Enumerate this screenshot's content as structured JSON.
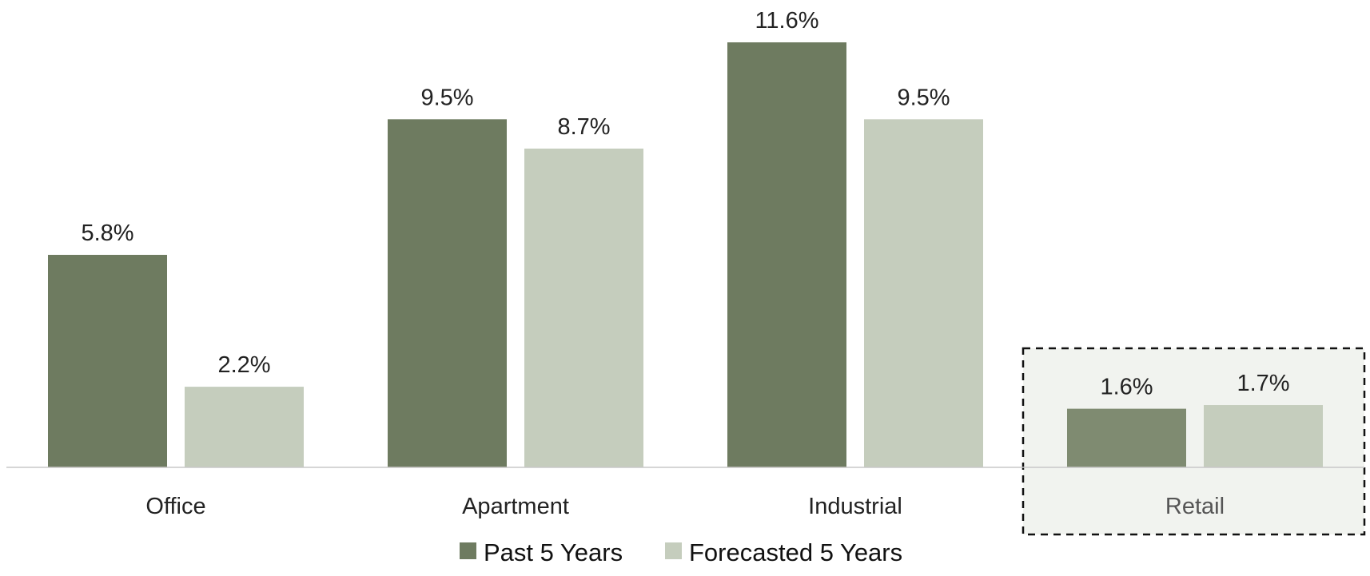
{
  "chart_data": {
    "type": "bar",
    "categories": [
      "Office",
      "Apartment",
      "Industrial",
      "Retail"
    ],
    "series": [
      {
        "name": "Past 5 Years",
        "values": [
          5.8,
          9.5,
          11.6,
          1.6
        ],
        "labels": [
          "5.8%",
          "9.5%",
          "11.6%",
          "1.6%"
        ],
        "color": "#6e7b60"
      },
      {
        "name": "Forecasted 5 Years",
        "values": [
          2.2,
          8.7,
          9.5,
          1.7
        ],
        "labels": [
          "2.2%",
          "8.7%",
          "9.5%",
          "1.7%"
        ],
        "color": "#c5cdbd"
      }
    ],
    "highlighted_category": "Retail",
    "highlight_fill": "#f1f3ef",
    "highlight_border": "dashed black",
    "highlight_past_color": "#7f8b71",
    "ylim": [
      0,
      11.6
    ],
    "grid": false,
    "legend_position": "bottom-center",
    "title": "",
    "xlabel": "",
    "ylabel": ""
  }
}
